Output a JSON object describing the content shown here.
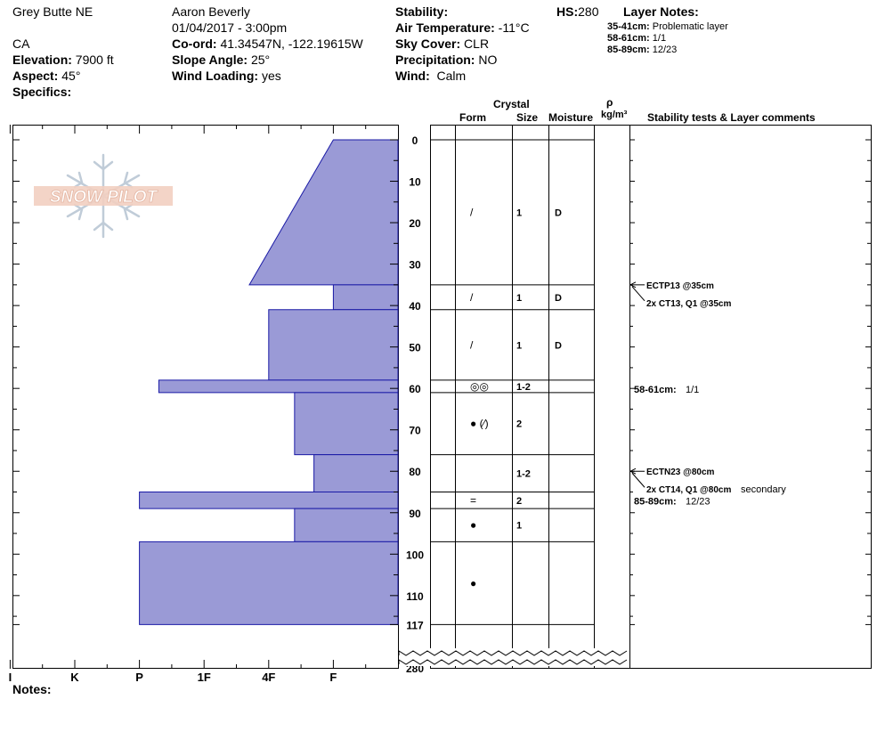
{
  "header": {
    "location": "Grey Butte NE",
    "state": "CA",
    "elevation_label": "Elevation:",
    "elevation": "7900 ft",
    "aspect_label": "Aspect:",
    "aspect": "45°",
    "specifics_label": "Specifics:",
    "observer": "Aaron Beverly",
    "datetime": "01/04/2017 - 3:00pm",
    "coord_label": "Co-ord:",
    "coord": "41.34547N, -122.19615W",
    "slope_label": "Slope Angle:",
    "slope": "25°",
    "wind_loading_label": "Wind Loading:",
    "wind_loading": "yes",
    "stability_label": "Stability:",
    "air_temp_label": "Air Temperature:",
    "air_temp": "-11°C",
    "sky_label": "Sky Cover:",
    "sky": "CLR",
    "precip_label": "Precipitation:",
    "precip": "NO",
    "wind_label": "Wind:",
    "wind": "Calm",
    "hs_label": "HS:",
    "hs": "280",
    "layer_notes_label": "Layer Notes:",
    "layer_notes": [
      {
        "range": "35-41cm:",
        "text": "Problematic layer"
      },
      {
        "range": "58-61cm:",
        "text": "1/1"
      },
      {
        "range": "85-89cm:",
        "text": "12/23"
      }
    ]
  },
  "columns": {
    "crystal": "Crystal",
    "form": "Form",
    "size": "Size",
    "moisture": "Moisture",
    "rho": "ρ",
    "density_unit": "kg/m³",
    "comments": "Stability tests & Layer comments"
  },
  "logo_text": "SNOW PILOT",
  "notes_label": "Notes:",
  "chart_data": {
    "type": "bar",
    "orientation": "horizontal",
    "hardness_scale": [
      "I",
      "K",
      "P",
      "1F",
      "4F",
      "F"
    ],
    "x_axis_direction": "hardness increases to the left",
    "depth_ticks": [
      0,
      10,
      20,
      30,
      40,
      50,
      60,
      70,
      80,
      90,
      100,
      110,
      117,
      280
    ],
    "depth_range_shown": [
      0,
      117
    ],
    "total_depth": 280,
    "y_axis_break_after": 117,
    "layers": [
      {
        "top": 0,
        "bottom": 35,
        "hardness_top": 1.0,
        "hardness_bottom": 2.3,
        "form": "/",
        "size": "1",
        "moisture": "D"
      },
      {
        "top": 35,
        "bottom": 41,
        "hardness_top": 1.0,
        "hardness_bottom": 1.0,
        "form": "/",
        "size": "1",
        "moisture": "D"
      },
      {
        "top": 41,
        "bottom": 58,
        "hardness_top": 2.0,
        "hardness_bottom": 2.0,
        "form": "/",
        "size": "1",
        "moisture": "D"
      },
      {
        "top": 58,
        "bottom": 61,
        "hardness_top": 3.7,
        "hardness_bottom": 3.7,
        "form": "◎◎",
        "size": "1-2",
        "moisture": ""
      },
      {
        "top": 61,
        "bottom": 76,
        "hardness_top": 1.6,
        "hardness_bottom": 1.6,
        "form": "● (⁄)",
        "size": "2",
        "moisture": ""
      },
      {
        "top": 76,
        "bottom": 85,
        "hardness_top": 1.3,
        "hardness_bottom": 1.3,
        "form": "",
        "size": "1-2",
        "moisture": ""
      },
      {
        "top": 85,
        "bottom": 89,
        "hardness_top": 4.0,
        "hardness_bottom": 4.0,
        "form": "=",
        "size": "2",
        "moisture": ""
      },
      {
        "top": 89,
        "bottom": 97,
        "hardness_top": 1.6,
        "hardness_bottom": 1.6,
        "form": "●",
        "size": "1",
        "moisture": ""
      },
      {
        "top": 97,
        "bottom": 117,
        "hardness_top": 4.0,
        "hardness_bottom": 4.0,
        "form": "●",
        "size": "",
        "moisture": ""
      }
    ],
    "stability_tests": [
      {
        "depth": 35,
        "lines": [
          "ECTP13 @35cm",
          "2x CT13, Q1 @35cm"
        ],
        "extra": ""
      },
      {
        "depth": 80,
        "lines": [
          "ECTN23 @80cm",
          "2x CT14, Q1 @80cm"
        ],
        "extra": "secondary"
      }
    ],
    "layer_comments": [
      {
        "depth": 58,
        "range": "58-61cm:",
        "text": "1/1"
      },
      {
        "depth": 85,
        "range": "85-89cm:",
        "text": "12/23"
      }
    ],
    "bar_color": "#9a9ad6",
    "bar_edge_color": "#1a1aa6"
  }
}
